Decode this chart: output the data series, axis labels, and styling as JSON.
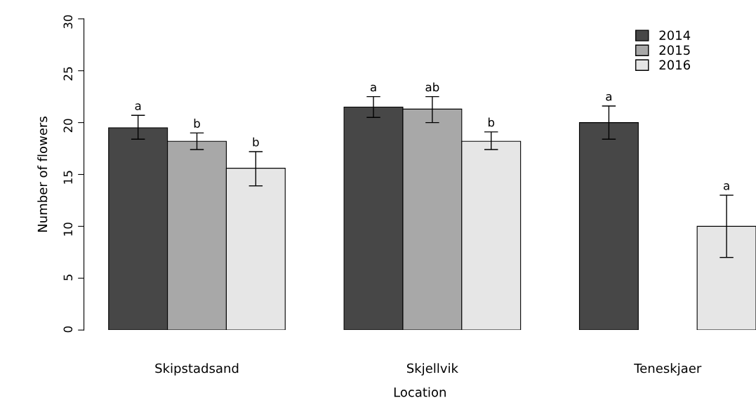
{
  "chart_data": {
    "type": "bar",
    "xlabel": "Location",
    "ylabel": "Number of flowers",
    "categories": [
      "Skipstadsand",
      "Skjellvik",
      "Teneskjaer"
    ],
    "series": [
      {
        "name": "2014",
        "color": "#474747",
        "values": [
          19.5,
          21.5,
          20.0
        ],
        "errors": [
          [
            18.4,
            20.7
          ],
          [
            20.5,
            22.5
          ],
          [
            18.4,
            21.6
          ]
        ],
        "value_labels": [
          "a",
          "a",
          "a"
        ]
      },
      {
        "name": "2015",
        "color": "#a8a8a8",
        "values": [
          18.2,
          21.3,
          null
        ],
        "errors": [
          [
            17.4,
            19.0
          ],
          [
            20.0,
            22.5
          ],
          null
        ],
        "value_labels": [
          "b",
          "ab",
          null
        ]
      },
      {
        "name": "2016",
        "color": "#e6e6e6",
        "values": [
          15.6,
          18.2,
          10.0
        ],
        "errors": [
          [
            13.9,
            17.2
          ],
          [
            17.4,
            19.1
          ],
          [
            7.0,
            13.0
          ]
        ],
        "value_labels": [
          "b",
          "b",
          "a"
        ]
      }
    ],
    "ylim": [
      0,
      30
    ],
    "yticks": [
      0,
      5,
      10,
      15,
      20,
      25,
      30
    ],
    "grid": false,
    "legend": "top right"
  }
}
